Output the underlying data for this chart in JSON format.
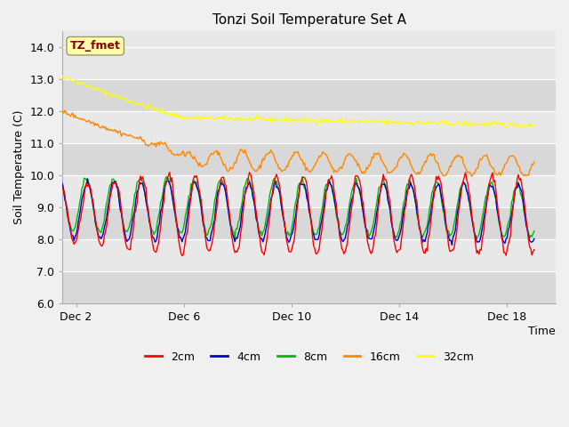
{
  "title": "Tonzi Soil Temperature Set A",
  "xlabel": "Time",
  "ylabel": "Soil Temperature (C)",
  "ylim": [
    6.0,
    14.5
  ],
  "yticks": [
    6.0,
    7.0,
    8.0,
    9.0,
    10.0,
    11.0,
    12.0,
    13.0,
    14.0
  ],
  "fig_bg": "#f0f0f0",
  "plot_bg": "#e8e8e8",
  "line_colors": {
    "2cm": "#ff0000",
    "4cm": "#0000cc",
    "8cm": "#00bb00",
    "16cm": "#ff8800",
    "32cm": "#ffff00"
  },
  "annotation_text": "TZ_fmet",
  "annotation_color": "#8b0000",
  "annotation_bg": "#ffffaa",
  "x_tick_labels": [
    "Dec 2",
    "Dec 6",
    "Dec 10",
    "Dec 14",
    "Dec 18"
  ],
  "x_tick_positions": [
    2,
    6,
    10,
    14,
    18
  ],
  "xlim": [
    1.5,
    19.8
  ],
  "n_days": 19,
  "samples_per_day": 24
}
